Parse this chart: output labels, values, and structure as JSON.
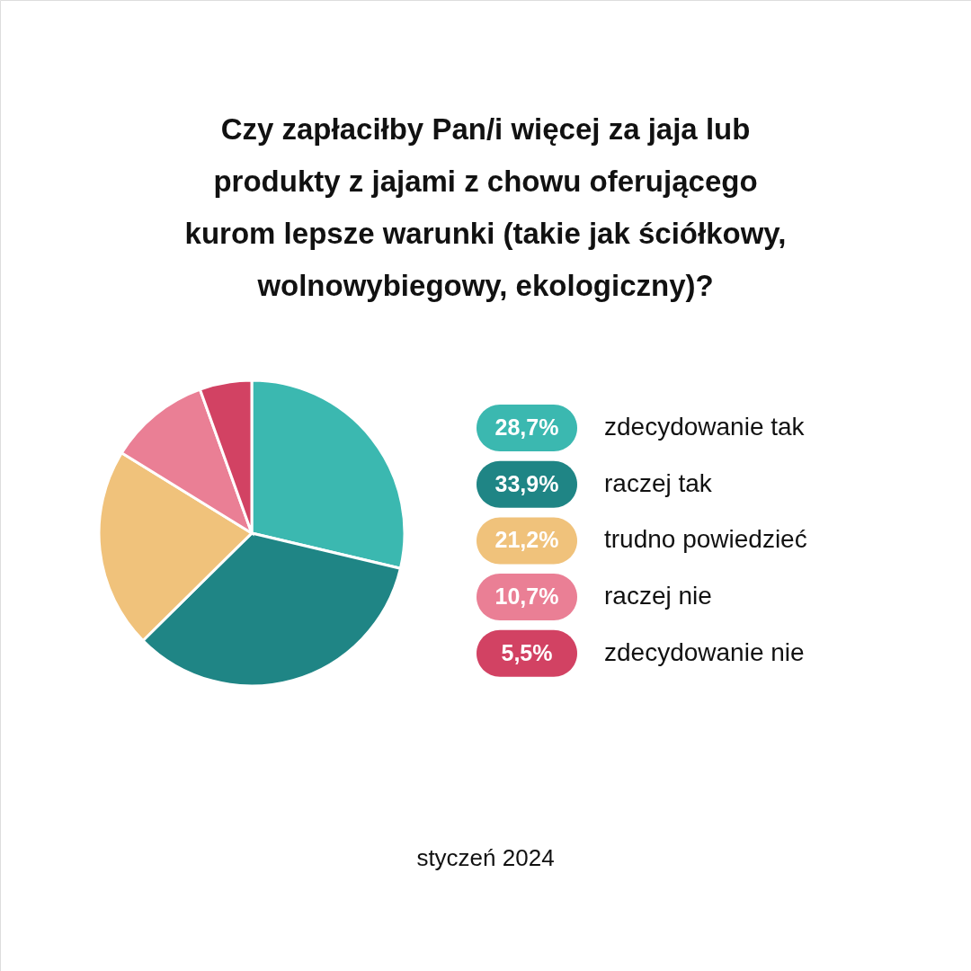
{
  "chart_data": {
    "type": "pie",
    "title": "Czy zapłaciłby Pan/i więcej za jaja lub produkty z jajami z chowu oferującego kurom lepsze warunki (takie jak ściółkowy, wolnowybiegowy, ekologiczny)?",
    "categories": [
      "zdecydowanie tak",
      "raczej tak",
      "trudno powiedzieć",
      "raczej nie",
      "zdecydowanie nie"
    ],
    "values": [
      28.7,
      33.9,
      21.2,
      10.7,
      5.5
    ],
    "colors": [
      "#3bb8b0",
      "#1f8585",
      "#f0c27b",
      "#ea7f95",
      "#d24263"
    ],
    "value_labels": [
      "28,7%",
      "33,9%",
      "21,2%",
      "10,7%",
      "5,5%"
    ],
    "legend": "right",
    "annotations": [
      "styczeń 2024"
    ]
  }
}
